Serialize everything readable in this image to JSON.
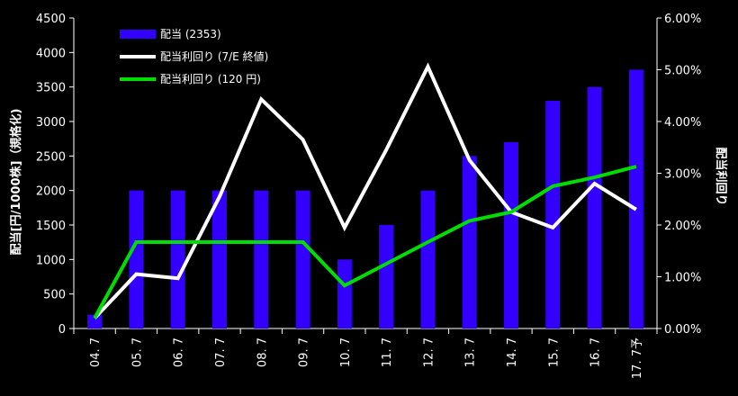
{
  "chart_data": {
    "type": "bar+line",
    "categories": [
      "04. 7",
      "05. 7",
      "06. 7",
      "07. 7",
      "08. 7",
      "09. 7",
      "10. 7",
      "11. 7",
      "12. 7",
      "13. 7",
      "14. 7",
      "15. 7",
      "16. 7",
      "17. 7予"
    ],
    "series": [
      {
        "name": "配当 (2353)",
        "type": "bar",
        "axis": "left",
        "color": "#3300ff",
        "values": [
          200,
          2000,
          2000,
          2000,
          2000,
          2000,
          1000,
          1500,
          2000,
          2500,
          2700,
          3300,
          3500,
          3750
        ]
      },
      {
        "name": "配当利回り (7/E 終値)",
        "type": "line",
        "axis": "right",
        "color": "#ffffff",
        "values": [
          0.2,
          1.05,
          0.97,
          2.55,
          4.43,
          3.65,
          1.95,
          3.45,
          5.06,
          3.25,
          2.25,
          1.95,
          2.8,
          2.3
        ]
      },
      {
        "name": "配当利回り (120 円)",
        "type": "line",
        "axis": "right",
        "color": "#00dd00",
        "values": [
          0.2,
          1.67,
          1.67,
          1.67,
          1.67,
          1.67,
          0.83,
          1.25,
          1.67,
          2.08,
          2.25,
          2.75,
          2.92,
          3.13
        ]
      }
    ],
    "ylabel_left": "配当[円/1000株]（規格化)",
    "ylabel_right": "配当利回り",
    "ylim_left": [
      0,
      4500
    ],
    "ylim_right": [
      0,
      6
    ],
    "yticks_left": [
      "0",
      "500",
      "1000",
      "1500",
      "2000",
      "2500",
      "3000",
      "3500",
      "4000",
      "4500"
    ],
    "yticks_right": [
      "0.00%",
      "1.00%",
      "2.00%",
      "3.00%",
      "4.00%",
      "5.00%",
      "6.00%"
    ],
    "legend": "top-left",
    "grid": false
  }
}
